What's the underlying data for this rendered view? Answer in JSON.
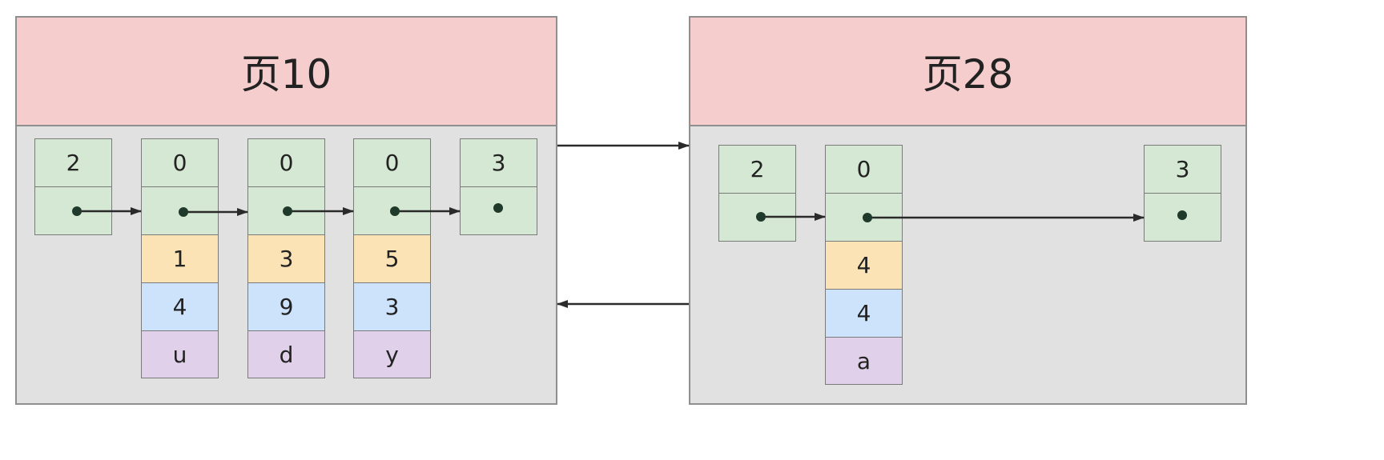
{
  "pages": [
    {
      "id": "page10",
      "title": "页10",
      "records": [
        {
          "kind": "infimum",
          "n_owned": "2"
        },
        {
          "kind": "user",
          "n_owned": "0",
          "fields": [
            "1",
            "4",
            "u"
          ]
        },
        {
          "kind": "user",
          "n_owned": "0",
          "fields": [
            "3",
            "9",
            "d"
          ]
        },
        {
          "kind": "user",
          "n_owned": "0",
          "fields": [
            "5",
            "3",
            "y"
          ]
        },
        {
          "kind": "supremum",
          "n_owned": "3"
        }
      ]
    },
    {
      "id": "page28",
      "title": "页28",
      "records": [
        {
          "kind": "infimum",
          "n_owned": "2"
        },
        {
          "kind": "user",
          "n_owned": "0",
          "fields": [
            "4",
            "4",
            "a"
          ]
        },
        {
          "kind": "supremum",
          "n_owned": "3"
        }
      ]
    }
  ],
  "page_links": [
    {
      "from": "page10",
      "to": "page28",
      "type": "next-page"
    },
    {
      "from": "page28",
      "to": "page10",
      "type": "prev-page"
    }
  ],
  "colors": {
    "header": "#f5cdcd",
    "body": "#e1e1e1",
    "header_cell": "#d5e8d4",
    "field_1": "#fbe3b6",
    "field_2": "#cde3fc",
    "field_3": "#e1d0ea",
    "arrow": "#2a2a2a"
  }
}
